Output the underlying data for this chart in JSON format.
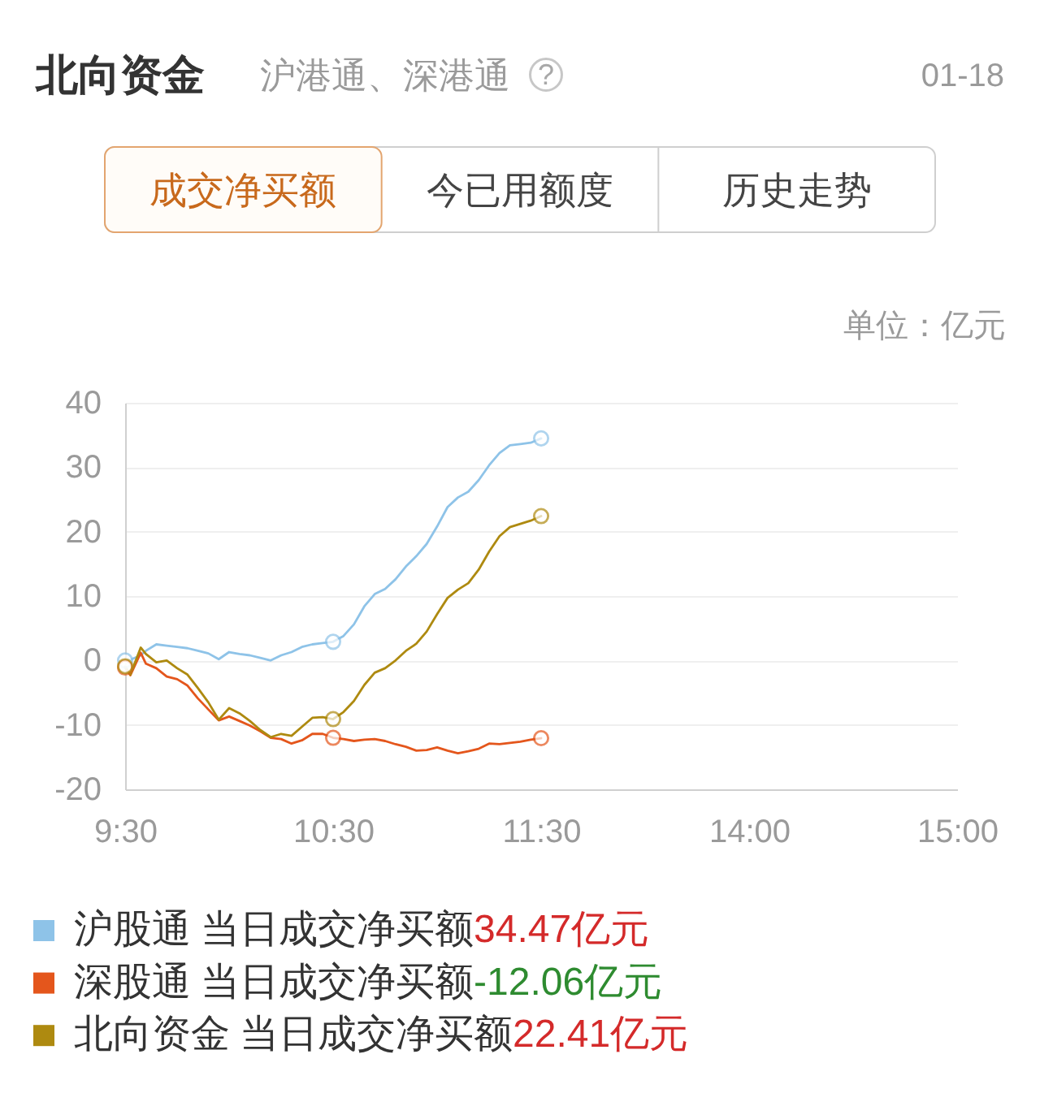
{
  "chart_data": [
    {
      "type": "line",
      "title": "北向资金",
      "subtitle": "沪港通、深港通",
      "x": [
        9.5,
        9.525,
        9.575,
        9.6,
        9.65,
        9.7,
        9.75,
        9.8,
        9.85,
        9.9,
        9.95,
        10.0,
        10.05,
        10.1,
        10.15,
        10.2,
        10.25,
        10.3,
        10.35,
        10.4,
        10.45,
        10.5,
        10.55,
        10.6,
        10.65,
        10.7,
        10.75,
        10.8,
        10.85,
        10.9,
        10.95,
        11.0,
        11.05,
        11.1,
        11.15,
        11.2,
        11.25,
        11.3,
        11.35,
        11.4,
        11.45,
        11.5
      ],
      "xlim": [
        9.5,
        11.5
      ],
      "xticks": [
        {
          "value": 9.5,
          "label": "9:30"
        },
        {
          "value": 10.5,
          "label": "10:30"
        },
        {
          "value": 11.5,
          "label": "11:30"
        }
      ],
      "ylim": [
        -20,
        40
      ],
      "yticks": [
        -20,
        -10,
        0,
        10,
        20,
        30,
        40
      ],
      "grid": "y",
      "legend": "bottom",
      "series": [
        {
          "name": "沪股通",
          "color": "#8ec3e8",
          "values": [
            0.0,
            0.1,
            0.8,
            1.5,
            2.5,
            2.3,
            2.1,
            1.9,
            1.5,
            1.1,
            0.2,
            1.3,
            1.0,
            0.8,
            0.4,
            0.0,
            0.8,
            1.3,
            2.1,
            2.5,
            2.7,
            2.9,
            3.8,
            5.6,
            8.4,
            10.3,
            11.1,
            12.6,
            14.6,
            16.2,
            18.1,
            20.8,
            23.8,
            25.3,
            26.2,
            28.0,
            30.3,
            32.2,
            33.4,
            33.6,
            33.8,
            34.47
          ]
        },
        {
          "name": "深股通",
          "color": "#e4561c",
          "values": [
            -1.1,
            -2.3,
            1.2,
            -0.5,
            -1.2,
            -2.5,
            -2.9,
            -3.9,
            -5.9,
            -7.6,
            -9.3,
            -8.7,
            -9.4,
            -10.1,
            -11.0,
            -12.0,
            -12.2,
            -12.9,
            -12.4,
            -11.4,
            -11.4,
            -12.0,
            -12.2,
            -12.5,
            -12.3,
            -12.2,
            -12.5,
            -13.0,
            -13.4,
            -14.0,
            -13.9,
            -13.5,
            -14.0,
            -14.4,
            -14.1,
            -13.7,
            -12.9,
            -13.0,
            -12.8,
            -12.6,
            -12.3,
            -12.06
          ]
        },
        {
          "name": "北向资金",
          "color": "#ae8a10",
          "values": [
            -0.9,
            -2.2,
            2.0,
            1.0,
            -0.3,
            0.0,
            -1.2,
            -2.2,
            -4.3,
            -6.5,
            -9.2,
            -7.4,
            -8.2,
            -9.4,
            -10.8,
            -11.9,
            -11.4,
            -11.7,
            -10.3,
            -8.9,
            -8.8,
            -9.1,
            -8.0,
            -6.3,
            -3.8,
            -1.9,
            -1.2,
            0.0,
            1.5,
            2.6,
            4.5,
            7.2,
            9.7,
            11.0,
            12.0,
            14.1,
            16.9,
            19.3,
            20.7,
            21.2,
            21.7,
            22.41
          ]
        },
        {
          "type": "scatter",
          "color": "#8ec3e8",
          "x": [
            9.5,
            10.5,
            11.5
          ],
          "values": [
            0.0,
            2.9,
            34.47
          ]
        },
        {
          "type": "scatter",
          "color": "#e4561c",
          "x": [
            9.5,
            10.5,
            11.5
          ],
          "values": [
            -1.1,
            -12.0,
            -12.06
          ]
        },
        {
          "type": "scatter",
          "color": "#ae8a10",
          "x": [
            9.5,
            10.5,
            11.5
          ],
          "values": [
            -0.9,
            -9.1,
            22.41
          ]
        }
      ],
      "annotations": [
        "?",
        "01-18",
        "成交净买额",
        "今已用额度",
        "历史走势",
        "单位：亿元",
        "当日成交净买额",
        "34.47亿元",
        "当日成交净买额",
        "-12.06亿元",
        "当日成交净买额",
        "22.41亿元"
      ]
    },
    {
      "type": "line",
      "xlim": [
        13,
        15
      ],
      "xticks": [
        {
          "value": 14,
          "label": "14:00"
        },
        {
          "value": 15,
          "label": "15:00"
        }
      ],
      "ylim": [
        -20,
        40
      ],
      "yticks": [
        -20,
        -10,
        0,
        10,
        20,
        30,
        40
      ],
      "grid": "y",
      "tick_labels": "x"
    }
  ]
}
